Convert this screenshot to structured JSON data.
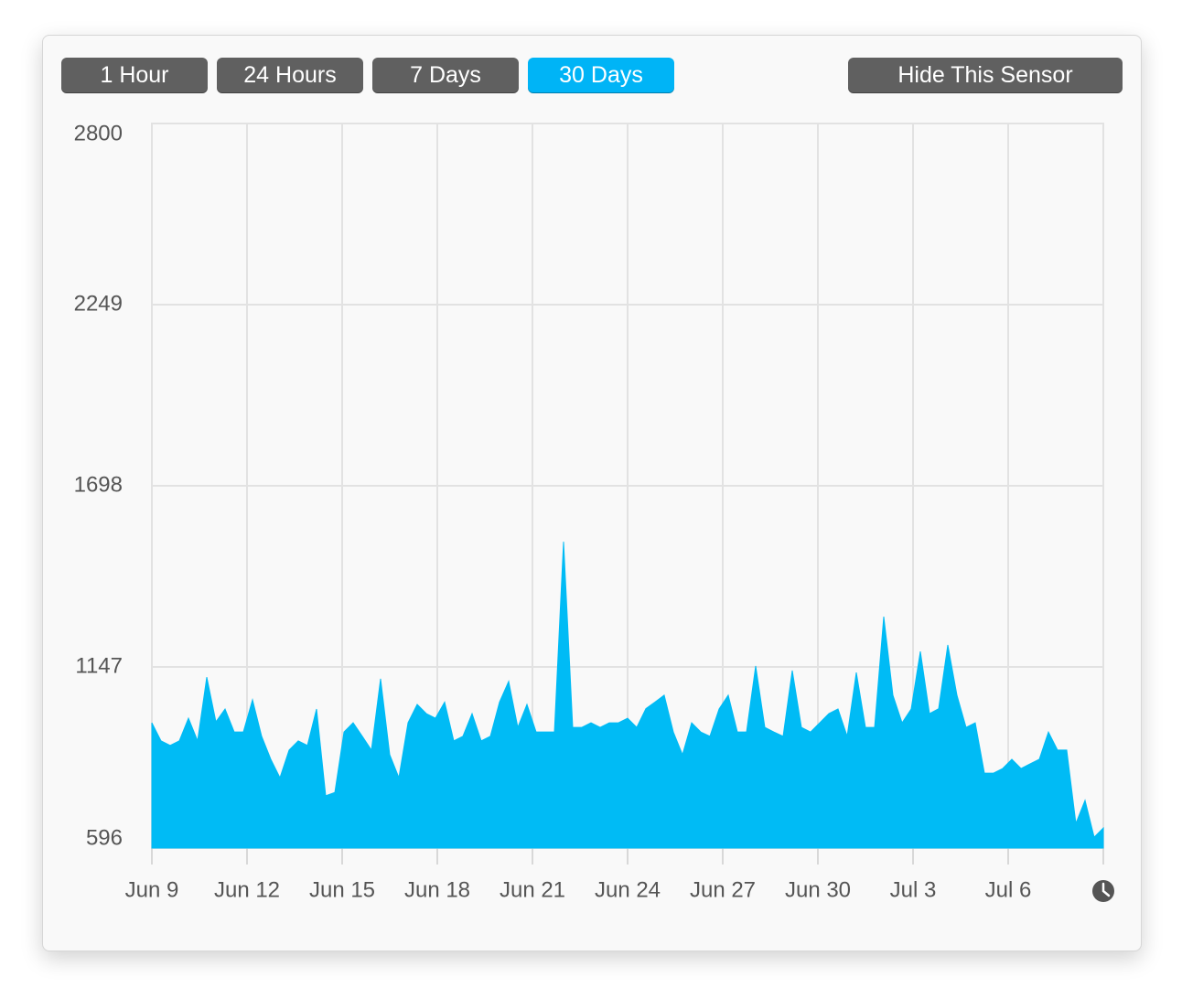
{
  "buttons": [
    "1 Hour",
    "24 Hours",
    "7 Days",
    "30 Days",
    "Hide This Sensor"
  ],
  "active_button": 3,
  "chart_data": {
    "type": "area",
    "color": "#00bbf5",
    "grid": true,
    "xticks": [
      "Jun 9",
      "Jun 12",
      "Jun 15",
      "Jun 18",
      "Jun 21",
      "Jun 24",
      "Jun 27",
      "Jun 30",
      "Jul 3",
      "Jul 6",
      null
    ],
    "ylim": [
      596,
      2800
    ],
    "yticks": [
      596,
      1147,
      1698,
      2249,
      2800
    ],
    "values": [
      977,
      922,
      908,
      922,
      991,
      922,
      1116,
      980,
      1019,
      949,
      949,
      1047,
      936,
      866,
      810,
      894,
      922,
      908,
      1019,
      755,
      765,
      949,
      977,
      936,
      894,
      1111,
      880,
      810,
      977,
      1033,
      1005,
      991,
      1040,
      922,
      936,
      1005,
      922,
      936,
      1040,
      1103,
      963,
      1033,
      949,
      949,
      949,
      1528,
      963,
      963,
      977,
      963,
      977,
      977,
      991,
      963,
      1020,
      1040,
      1061,
      949,
      880,
      977,
      949,
      936,
      1019,
      1061,
      949,
      949,
      1150,
      963,
      949,
      936,
      1136,
      963,
      949,
      977,
      1005,
      1019,
      936,
      1130,
      963,
      963,
      1300,
      1061,
      977,
      1019,
      1194,
      1005,
      1020,
      1214,
      1061,
      963,
      977,
      824,
      824,
      838,
      866,
      838,
      852,
      866,
      949,
      894,
      894,
      671,
      741,
      629,
      657
    ]
  }
}
